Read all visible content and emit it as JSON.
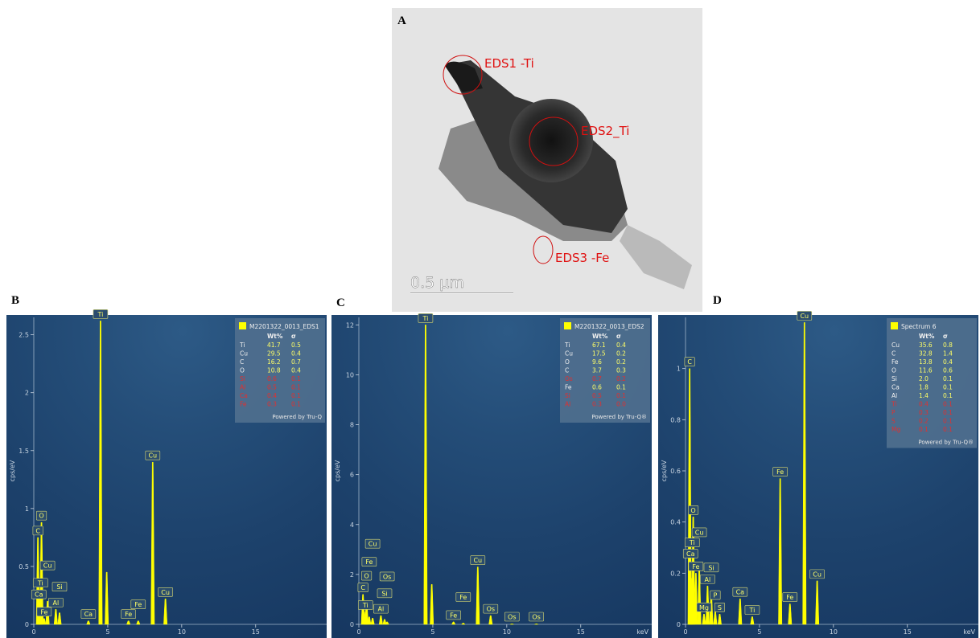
{
  "panel_a": {
    "label": "A",
    "annotations": [
      "EDS1 -Ti",
      "EDS2_Ti",
      "EDS3 -Fe"
    ],
    "scale_bar": "0.5 µm"
  },
  "chart_data": [
    {
      "type": "spectrum",
      "label": "B",
      "ylabel": "cps/eV",
      "color": "#ffff00",
      "xlim": [
        0,
        19.8
      ],
      "xticks": [
        0,
        5,
        10,
        15
      ],
      "ylim": [
        0,
        2.65
      ],
      "yticks": [
        0,
        0.5,
        1,
        1.5,
        2,
        2.5
      ],
      "x": [
        0.28,
        0.52,
        0.45,
        0.34,
        0.93,
        0.7,
        1.49,
        1.74,
        3.69,
        4.51,
        4.93,
        6.4,
        7.06,
        8.04,
        8.9
      ],
      "values": [
        0.75,
        0.88,
        0.3,
        0.2,
        0.2,
        0.05,
        0.13,
        0.1,
        0.03,
        2.62,
        0.45,
        0.03,
        0.03,
        1.4,
        0.22
      ],
      "labels": [
        "C",
        "O",
        "Ti",
        "Ca",
        "Cu",
        "Fe",
        "Al",
        "Si",
        "Ca",
        "Ti",
        null,
        "Fe",
        "Fe",
        "Cu",
        "Cu"
      ],
      "legend": {
        "title": "M2201322_0013_EDS1",
        "header": [
          "Wt%",
          "σ"
        ],
        "footer": "Powered by Tru-Q",
        "rows": [
          {
            "element": "Ti",
            "wt": "41.7",
            "sigma": "0.5",
            "color": "#ffff66"
          },
          {
            "element": "Cu",
            "wt": "29.5",
            "sigma": "0.4",
            "color": "#ffff66"
          },
          {
            "element": "C",
            "wt": "16.2",
            "sigma": "0.7",
            "color": "#ffff66"
          },
          {
            "element": "O",
            "wt": "10.8",
            "sigma": "0.4",
            "color": "#ffff66"
          },
          {
            "element": "Si",
            "wt": "0.6",
            "sigma": "0.1",
            "color": "#e03030"
          },
          {
            "element": "Al",
            "wt": "0.5",
            "sigma": "0.1",
            "color": "#e03030"
          },
          {
            "element": "Ca",
            "wt": "0.4",
            "sigma": "0.1",
            "color": "#e03030"
          },
          {
            "element": "Fe",
            "wt": "0.3",
            "sigma": "0.1",
            "color": "#e03030"
          }
        ]
      }
    },
    {
      "type": "spectrum",
      "label": "C",
      "ylabel": "cps/eV",
      "xlabel": "keV",
      "color": "#ffff00",
      "xlim": [
        0,
        19.8
      ],
      "xticks": [
        0,
        5,
        10,
        15
      ],
      "ylim": [
        0,
        12.3
      ],
      "yticks": [
        0,
        2,
        4,
        6,
        8,
        10,
        12
      ],
      "x": [
        0.28,
        0.52,
        0.45,
        0.7,
        0.93,
        1.49,
        1.74,
        1.91,
        4.51,
        4.93,
        6.4,
        7.06,
        8.04,
        8.91,
        10.35,
        12.0
      ],
      "values": [
        1.2,
        0.9,
        0.5,
        0.3,
        0.25,
        0.35,
        0.2,
        0.1,
        12.0,
        1.6,
        0.1,
        0.05,
        2.3,
        0.35,
        0.02,
        0.02
      ],
      "labels": [
        "C",
        "O",
        "Ti",
        "Fe",
        "Cu",
        "Al",
        "Si",
        "Os",
        "Ti",
        null,
        "Fe",
        "Fe",
        "Cu",
        "Os",
        "Os",
        "Os"
      ],
      "legend": {
        "title": "M2201322_0013_EDS2",
        "header": [
          "Wt%",
          "σ"
        ],
        "footer": "Powered by Tru-Q®",
        "rows": [
          {
            "element": "Ti",
            "wt": "67.1",
            "sigma": "0.4",
            "color": "#ffff66"
          },
          {
            "element": "Cu",
            "wt": "17.5",
            "sigma": "0.2",
            "color": "#ffff66"
          },
          {
            "element": "O",
            "wt": "9.6",
            "sigma": "0.2",
            "color": "#ffff66"
          },
          {
            "element": "C",
            "wt": "3.7",
            "sigma": "0.3",
            "color": "#ffff66"
          },
          {
            "element": "Os",
            "wt": "0.7",
            "sigma": "0.2",
            "color": "#e03030"
          },
          {
            "element": "Fe",
            "wt": "0.6",
            "sigma": "0.1",
            "color": "#ffff66"
          },
          {
            "element": "Si",
            "wt": "0.5",
            "sigma": "0.1",
            "color": "#e03030"
          },
          {
            "element": "Al",
            "wt": "0.3",
            "sigma": "0.0",
            "color": "#e03030"
          }
        ]
      }
    },
    {
      "type": "spectrum",
      "label": "D",
      "ylabel": "cps/eV",
      "xlabel": "keV",
      "color": "#ffff00",
      "xlim": [
        0,
        19.8
      ],
      "xticks": [
        0,
        5,
        10,
        15
      ],
      "ylim": [
        0,
        1.2
      ],
      "yticks": [
        0,
        0.2,
        0.4,
        0.6,
        0.8,
        1
      ],
      "x": [
        0.28,
        0.52,
        0.34,
        0.7,
        0.45,
        0.93,
        1.25,
        1.49,
        1.74,
        2.01,
        2.31,
        3.69,
        4.51,
        6.4,
        7.06,
        8.04,
        8.9
      ],
      "values": [
        1.0,
        0.42,
        0.25,
        0.2,
        0.18,
        0.22,
        0.04,
        0.15,
        0.12,
        0.05,
        0.04,
        0.1,
        0.03,
        0.57,
        0.08,
        1.18,
        0.17
      ],
      "labels": [
        "C",
        "O",
        "Ca",
        "Fe",
        "Ti",
        "Cu",
        "Mg",
        "Al",
        "Si",
        "P",
        "S",
        "Ca",
        "Ti",
        "Fe",
        "Fe",
        "Cu",
        "Cu"
      ],
      "legend": {
        "title": "Spectrum 6",
        "header": [
          "Wt%",
          "σ"
        ],
        "footer": "Powered by Tru-Q®",
        "rows": [
          {
            "element": "Cu",
            "wt": "35.6",
            "sigma": "0.8",
            "color": "#ffff66"
          },
          {
            "element": "C",
            "wt": "32.8",
            "sigma": "1.4",
            "color": "#ffff66"
          },
          {
            "element": "Fe",
            "wt": "13.8",
            "sigma": "0.4",
            "color": "#ffff66"
          },
          {
            "element": "O",
            "wt": "11.6",
            "sigma": "0.6",
            "color": "#ffff66"
          },
          {
            "element": "Si",
            "wt": "2.0",
            "sigma": "0.1",
            "color": "#ffff66"
          },
          {
            "element": "Ca",
            "wt": "1.8",
            "sigma": "0.1",
            "color": "#ffff66"
          },
          {
            "element": "Al",
            "wt": "1.4",
            "sigma": "0.1",
            "color": "#ffff66"
          },
          {
            "element": "Ti",
            "wt": "0.4",
            "sigma": "0.1",
            "color": "#e03030"
          },
          {
            "element": "P",
            "wt": "0.3",
            "sigma": "0.1",
            "color": "#e03030"
          },
          {
            "element": "S",
            "wt": "0.2",
            "sigma": "0.1",
            "color": "#e03030"
          },
          {
            "element": "Mg",
            "wt": "0.1",
            "sigma": "0.1",
            "color": "#e03030"
          }
        ]
      }
    }
  ]
}
